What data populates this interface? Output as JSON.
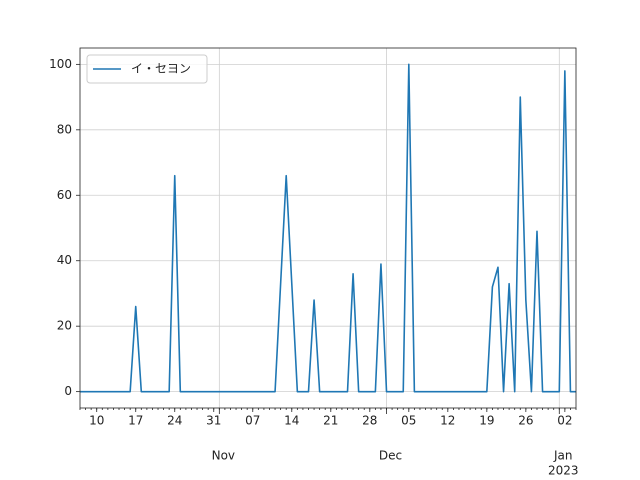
{
  "chart_data": {
    "type": "line",
    "x": [
      "10-07",
      "10-08",
      "10-09",
      "10-10",
      "10-11",
      "10-12",
      "10-13",
      "10-14",
      "10-15",
      "10-16",
      "10-17",
      "10-18",
      "10-19",
      "10-20",
      "10-21",
      "10-22",
      "10-23",
      "10-24",
      "10-25",
      "10-26",
      "10-27",
      "10-28",
      "10-29",
      "10-30",
      "10-31",
      "11-01",
      "11-02",
      "11-03",
      "11-04",
      "11-05",
      "11-06",
      "11-07",
      "11-08",
      "11-09",
      "11-10",
      "11-11",
      "11-12",
      "11-13",
      "11-14",
      "11-15",
      "11-16",
      "11-17",
      "11-18",
      "11-19",
      "11-20",
      "11-21",
      "11-22",
      "11-23",
      "11-24",
      "11-25",
      "11-26",
      "11-27",
      "11-28",
      "11-29",
      "11-30",
      "12-01",
      "12-02",
      "12-03",
      "12-04",
      "12-05",
      "12-06",
      "12-07",
      "12-08",
      "12-09",
      "12-10",
      "12-11",
      "12-12",
      "12-13",
      "12-14",
      "12-15",
      "12-16",
      "12-17",
      "12-18",
      "12-19",
      "12-20",
      "12-21",
      "12-22",
      "12-23",
      "12-24",
      "12-25",
      "12-26",
      "12-27",
      "12-28",
      "12-29",
      "12-30",
      "12-31",
      "01-01",
      "01-02",
      "01-03",
      "01-04"
    ],
    "series": [
      {
        "name": "イ・セヨン",
        "color": "#1f77b4",
        "values": [
          0,
          0,
          0,
          0,
          0,
          0,
          0,
          0,
          0,
          0,
          26,
          0,
          0,
          0,
          0,
          0,
          0,
          66,
          0,
          0,
          0,
          0,
          0,
          0,
          0,
          0,
          0,
          0,
          0,
          0,
          0,
          0,
          0,
          0,
          0,
          0,
          33,
          66,
          33,
          0,
          0,
          0,
          28,
          0,
          0,
          0,
          0,
          0,
          0,
          36,
          0,
          0,
          0,
          0,
          39,
          0,
          0,
          0,
          0,
          100,
          0,
          0,
          0,
          0,
          0,
          0,
          0,
          0,
          0,
          0,
          0,
          0,
          0,
          0,
          32,
          38,
          0,
          33,
          0,
          90,
          28,
          0,
          49,
          0,
          0,
          0,
          0,
          98,
          0,
          0
        ]
      }
    ],
    "xlim": [
      "10-07",
      "01-04"
    ],
    "xticks": [
      {
        "value": "10-10",
        "label": "10"
      },
      {
        "value": "10-17",
        "label": "17"
      },
      {
        "value": "10-24",
        "label": "24"
      },
      {
        "value": "10-31",
        "label": "31"
      },
      {
        "value": "11-07",
        "label": "07"
      },
      {
        "value": "11-14",
        "label": "14"
      },
      {
        "value": "11-21",
        "label": "21"
      },
      {
        "value": "11-28",
        "label": "28"
      },
      {
        "value": "12-05",
        "label": "05"
      },
      {
        "value": "12-12",
        "label": "12"
      },
      {
        "value": "12-19",
        "label": "19"
      },
      {
        "value": "12-26",
        "label": "26"
      },
      {
        "value": "01-02",
        "label": "02"
      }
    ],
    "month_ticks": [
      {
        "value": "11-01",
        "label": "Nov"
      },
      {
        "value": "12-01",
        "label": "Dec"
      },
      {
        "value": "01-01",
        "label": "Jan"
      }
    ],
    "year_label": "2023",
    "ylim": [
      -5,
      105
    ],
    "yticks": [
      0,
      20,
      40,
      60,
      80,
      100
    ],
    "grid": true,
    "legend": "upper left"
  }
}
